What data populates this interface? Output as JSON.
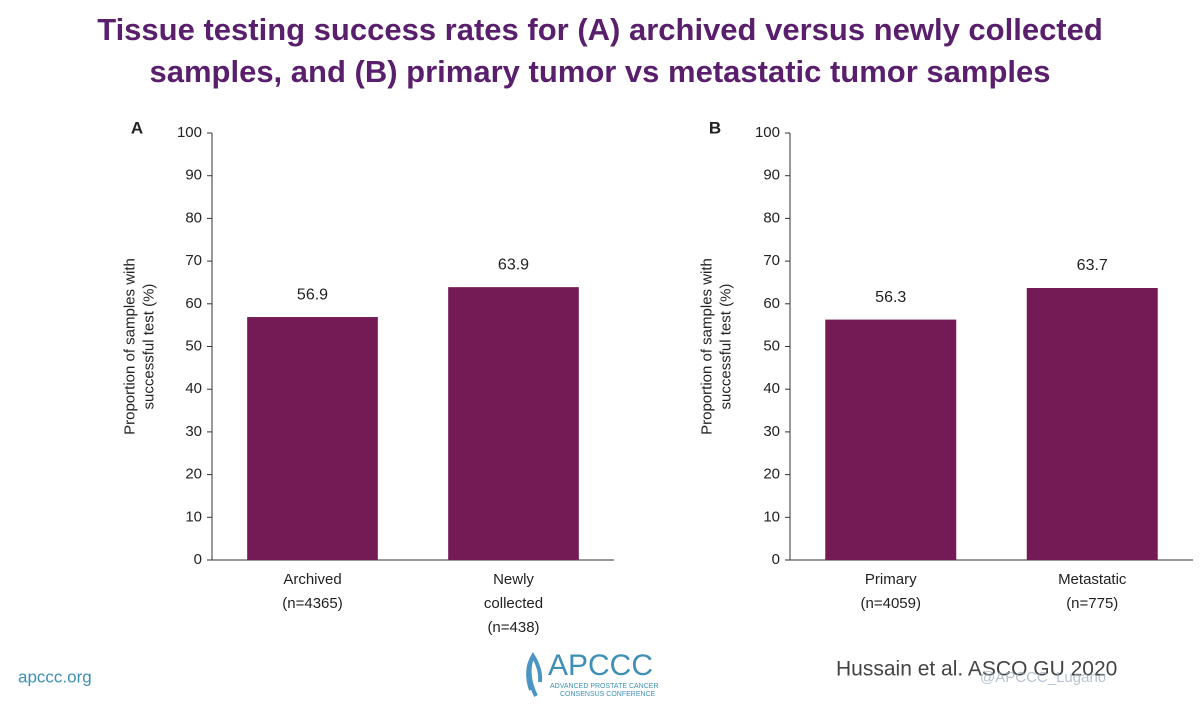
{
  "slide": {
    "title": [
      "Tissue testing success rates for (A) archived versus newly collected",
      "samples, and (B) primary tumor vs metastatic tumor samples"
    ],
    "footer_left": "apccc.org",
    "logo": {
      "name": "APCCC",
      "line1": "ADVANCED PROSTATE CANCER",
      "line2": "CONSENSUS CONFERENCE"
    },
    "citation": "Hussain et al. ASCO GU 2020",
    "handle": "@APCCC_Lugano"
  },
  "chart_data": [
    {
      "type": "bar",
      "panel": "A",
      "ylabel": [
        "Proportion of samples with",
        "successful test (%)"
      ],
      "categories": [
        [
          "Archived",
          "(n=4365)"
        ],
        [
          "Newly",
          "collected",
          "(n=438)"
        ]
      ],
      "values": [
        56.9,
        63.9
      ],
      "color": "#741a54",
      "ylim": [
        0,
        100
      ],
      "yticks": [
        0,
        10,
        20,
        30,
        40,
        50,
        60,
        70,
        80,
        90,
        100
      ]
    },
    {
      "type": "bar",
      "panel": "B",
      "ylabel": [
        "Proportion of samples with",
        "successful test (%)"
      ],
      "categories": [
        [
          "Primary",
          "(n=4059)"
        ],
        [
          "Metastatic",
          "(n=775)"
        ]
      ],
      "values": [
        56.3,
        63.7
      ],
      "color": "#741a54",
      "ylim": [
        0,
        100
      ],
      "yticks": [
        0,
        10,
        20,
        30,
        40,
        50,
        60,
        70,
        80,
        90,
        100
      ]
    }
  ]
}
